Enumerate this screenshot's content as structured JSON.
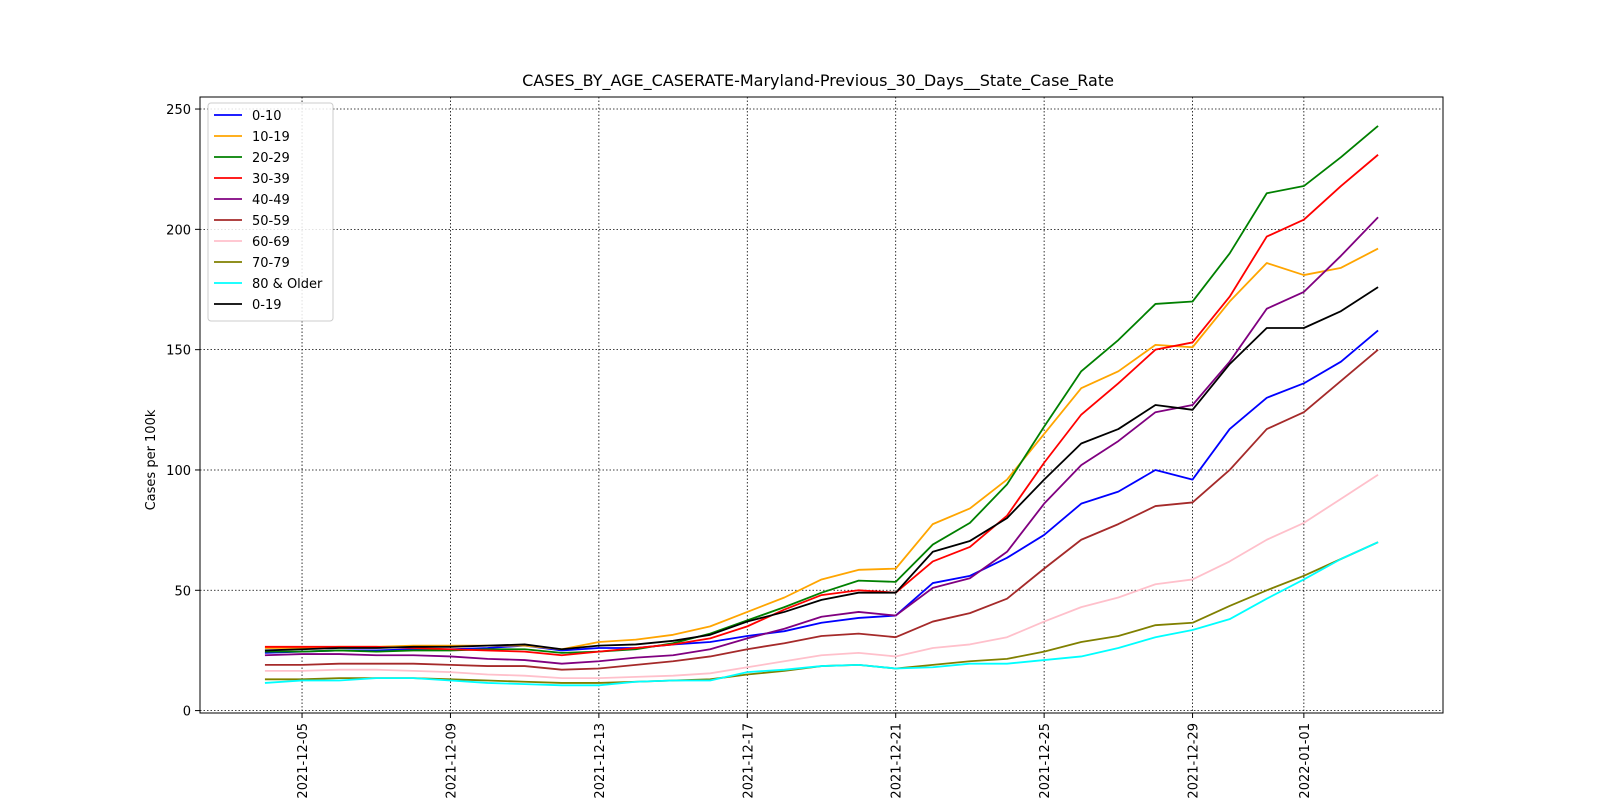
{
  "chart_data": {
    "type": "line",
    "title": "CASES_BY_AGE_CASERATE-Maryland-Previous_30_Days__State_Case_Rate",
    "xlabel": "",
    "ylabel": "Cases per 100k",
    "x": [
      "2021-12-04",
      "2021-12-05",
      "2021-12-06",
      "2021-12-07",
      "2021-12-08",
      "2021-12-09",
      "2021-12-10",
      "2021-12-11",
      "2021-12-12",
      "2021-12-13",
      "2021-12-14",
      "2021-12-15",
      "2021-12-16",
      "2021-12-17",
      "2021-12-18",
      "2021-12-19",
      "2021-12-20",
      "2021-12-21",
      "2021-12-22",
      "2021-12-23",
      "2021-12-24",
      "2021-12-25",
      "2021-12-26",
      "2021-12-27",
      "2021-12-28",
      "2021-12-29",
      "2021-12-30",
      "2021-12-31",
      "2022-01-01",
      "2022-01-02",
      "2022-01-03"
    ],
    "xticks": [
      "2021-12-05",
      "2021-12-09",
      "2021-12-13",
      "2021-12-17",
      "2021-12-21",
      "2021-12-25",
      "2021-12-29",
      "2022-01-01"
    ],
    "ylim": [
      -1,
      255
    ],
    "yticks": [
      0,
      50,
      100,
      150,
      200,
      250
    ],
    "grid": true,
    "legend_position": "upper-left",
    "series": [
      {
        "name": "0-10",
        "color": "#0000ff",
        "values": [
          24,
          24.5,
          25,
          25,
          25.5,
          25.5,
          26,
          27,
          25,
          26,
          26,
          27.5,
          28.5,
          31,
          33,
          36.5,
          38.5,
          39.5,
          53,
          56,
          63.5,
          73,
          86,
          91,
          100,
          96,
          117,
          130,
          136,
          145,
          158
        ]
      },
      {
        "name": "10-19",
        "color": "#ffa500",
        "values": [
          26,
          26,
          26.5,
          26.5,
          27,
          27,
          27,
          27,
          25.5,
          28.5,
          29.5,
          31.5,
          35,
          41,
          47,
          54.5,
          58.5,
          59,
          77.5,
          84,
          96,
          115,
          134,
          141,
          152,
          151,
          170,
          186,
          181,
          184,
          192
        ]
      },
      {
        "name": "20-29",
        "color": "#008000",
        "values": [
          24.5,
          24.5,
          25,
          24.5,
          25,
          25,
          25.5,
          25.5,
          24,
          24.5,
          25.5,
          28,
          32,
          37.5,
          43,
          49,
          54,
          53.5,
          69,
          78,
          94,
          118,
          141,
          154,
          169,
          170,
          190,
          215,
          218,
          230,
          243
        ]
      },
      {
        "name": "30-39",
        "color": "#ff0000",
        "values": [
          26.5,
          26.5,
          26.5,
          26.5,
          26,
          25.5,
          25,
          24.5,
          23,
          24.5,
          26,
          27.5,
          30,
          35,
          42,
          48,
          50,
          49,
          62,
          68,
          81,
          103,
          123,
          136,
          150,
          153,
          172,
          197,
          204,
          218,
          231
        ]
      },
      {
        "name": "40-49",
        "color": "#800080",
        "values": [
          23,
          23.5,
          23.5,
          23,
          23,
          22.5,
          21.5,
          21,
          19.5,
          20.5,
          22,
          23,
          25.5,
          30,
          34,
          39,
          41,
          39.5,
          51,
          55,
          66,
          86,
          102,
          112,
          124,
          127,
          145,
          167,
          174,
          189,
          205
        ]
      },
      {
        "name": "50-59",
        "color": "#a52a2a",
        "values": [
          19,
          19,
          19.5,
          19.5,
          19.5,
          19,
          18.5,
          18.5,
          17,
          17.5,
          19,
          20.5,
          22.5,
          25.5,
          28,
          31,
          32,
          30.5,
          37,
          40.5,
          46.5,
          59,
          71,
          77.5,
          85,
          86.5,
          100,
          117,
          124,
          137,
          150
        ]
      },
      {
        "name": "60-69",
        "color": "#ffc0cb",
        "values": [
          16.5,
          16.5,
          17,
          17,
          16.5,
          16,
          15,
          14.5,
          13.5,
          13.5,
          14,
          14.5,
          15.5,
          18,
          20.5,
          23,
          24,
          22.5,
          26,
          27.5,
          30.5,
          37,
          43,
          47,
          52.5,
          54.5,
          62,
          71,
          78,
          88,
          98
        ]
      },
      {
        "name": "70-79",
        "color": "#808000",
        "values": [
          13,
          13,
          13.5,
          13.5,
          13.5,
          13,
          12.5,
          12,
          11.5,
          11.5,
          12,
          12.5,
          13,
          15,
          16.5,
          18.5,
          19,
          17.5,
          19,
          20.5,
          21.5,
          24.5,
          28.5,
          31,
          35.5,
          36.5,
          43.5,
          50,
          56,
          63,
          70
        ]
      },
      {
        "name": "80 & Older",
        "color": "#00ffff",
        "values": [
          11.5,
          12.5,
          12.5,
          13.5,
          13.5,
          12.5,
          11.5,
          11,
          10.5,
          10.5,
          12,
          12.5,
          12.5,
          16,
          17,
          18.5,
          19,
          17.5,
          18,
          19.5,
          19.5,
          21,
          22.5,
          26,
          30.5,
          33.5,
          38,
          46.5,
          54.5,
          63,
          70
        ]
      },
      {
        "name": "0-19",
        "color": "#000000",
        "values": [
          25,
          25.5,
          26,
          26,
          26.5,
          26.5,
          27,
          27.5,
          25.5,
          27,
          27.5,
          29,
          31.5,
          37,
          41,
          46,
          49,
          49,
          66,
          70.5,
          80,
          96,
          111,
          117,
          127,
          125,
          144,
          159,
          159,
          166,
          176
        ]
      }
    ]
  }
}
